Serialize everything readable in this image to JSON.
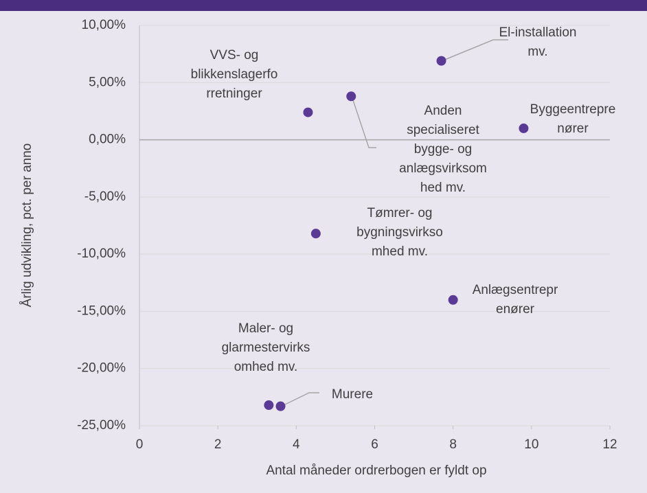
{
  "chart_data": {
    "type": "scatter",
    "xlabel": "Antal måneder ordrerbogen er fyldt op",
    "ylabel": "Årlig udvikling, pct. per anno",
    "x": [
      7.7,
      4.3,
      5.4,
      9.8,
      4.5,
      8.0,
      3.3,
      3.6
    ],
    "values": [
      6.9,
      2.4,
      3.8,
      1.0,
      -8.2,
      -14.0,
      -23.2,
      -23.3
    ],
    "labels": [
      [
        "El-installation",
        "mv."
      ],
      [
        "VVS- og",
        "blikkenslagerfo",
        "rretninger"
      ],
      [
        "Anden",
        "specialiseret",
        "bygge- og",
        "anlægsvirksom",
        "hed mv."
      ],
      [
        "Byggeentrepre",
        "nører"
      ],
      [
        "Tømrer- og",
        "bygningsvirkso",
        "mhed mv."
      ],
      [
        "Anlægsentrepr",
        "enører"
      ],
      [
        "Maler- og",
        "glarmestervirks",
        "omhed mv."
      ],
      [
        "Murere"
      ]
    ],
    "color": "#5a3a95",
    "xlim": [
      0,
      12
    ],
    "xticks": [
      0,
      2,
      4,
      6,
      8,
      10,
      12
    ],
    "ylim": [
      -25,
      10
    ],
    "yticks": [
      {
        "value": -25,
        "label": "-25,00%"
      },
      {
        "value": -20,
        "label": "-20,00%"
      },
      {
        "value": -15,
        "label": "-15,00%"
      },
      {
        "value": -10,
        "label": "-10,00%"
      },
      {
        "value": -5,
        "label": "-5,00%"
      },
      {
        "value": 0,
        "label": "0,00%"
      },
      {
        "value": 5,
        "label": "5,00%"
      },
      {
        "value": 10,
        "label": "10,00%"
      }
    ],
    "grid": true
  }
}
